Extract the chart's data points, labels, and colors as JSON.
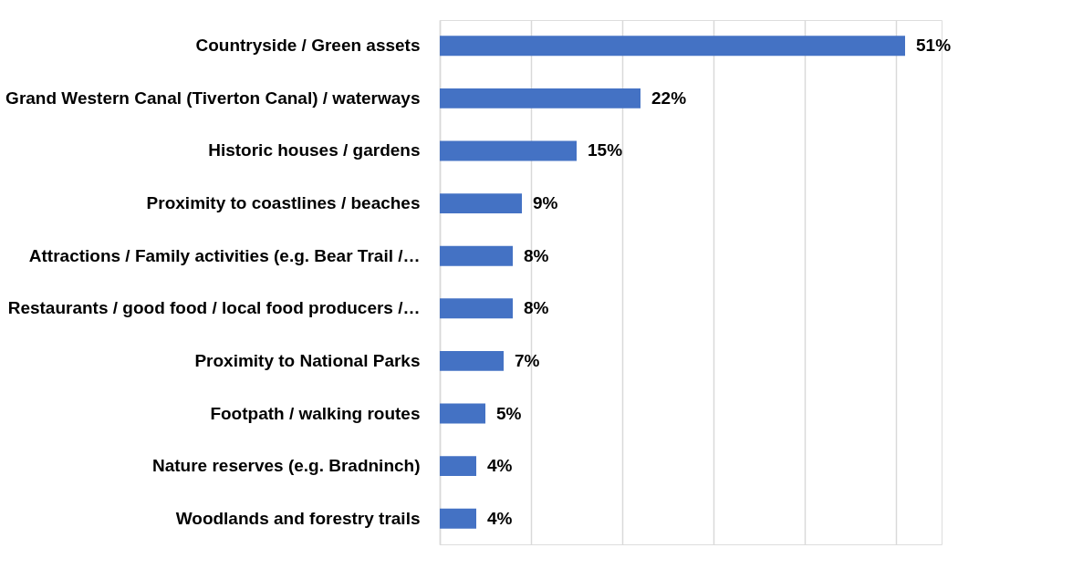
{
  "chart_data": {
    "type": "bar",
    "orientation": "horizontal",
    "categories": [
      "Countryside / Green assets",
      "Grand Western Canal (Tiverton Canal) / waterways",
      "Historic houses / gardens",
      "Proximity to coastlines / beaches",
      "Attractions / Family activities (e.g. Bear Trail /…",
      "Restaurants / good food / local food producers /…",
      "Proximity to National Parks",
      "Footpath / walking routes",
      "Nature reserves (e.g. Bradninch)",
      "Woodlands and forestry trails"
    ],
    "values": [
      51,
      22,
      15,
      9,
      8,
      8,
      7,
      5,
      4,
      4
    ],
    "value_labels": [
      "51%",
      "22%",
      "15%",
      "9%",
      "8%",
      "8%",
      "7%",
      "5%",
      "4%",
      "4%"
    ],
    "color": "#4472c4",
    "xlim": [
      0,
      55
    ],
    "xticks": [
      {
        "value": 0,
        "label": null
      },
      {
        "value": 10,
        "label": null
      },
      {
        "value": 20,
        "label": null
      },
      {
        "value": 30,
        "label": null
      },
      {
        "value": 40,
        "label": null
      },
      {
        "value": 50,
        "label": null
      }
    ],
    "grid": "x",
    "tick_labels": "y"
  }
}
